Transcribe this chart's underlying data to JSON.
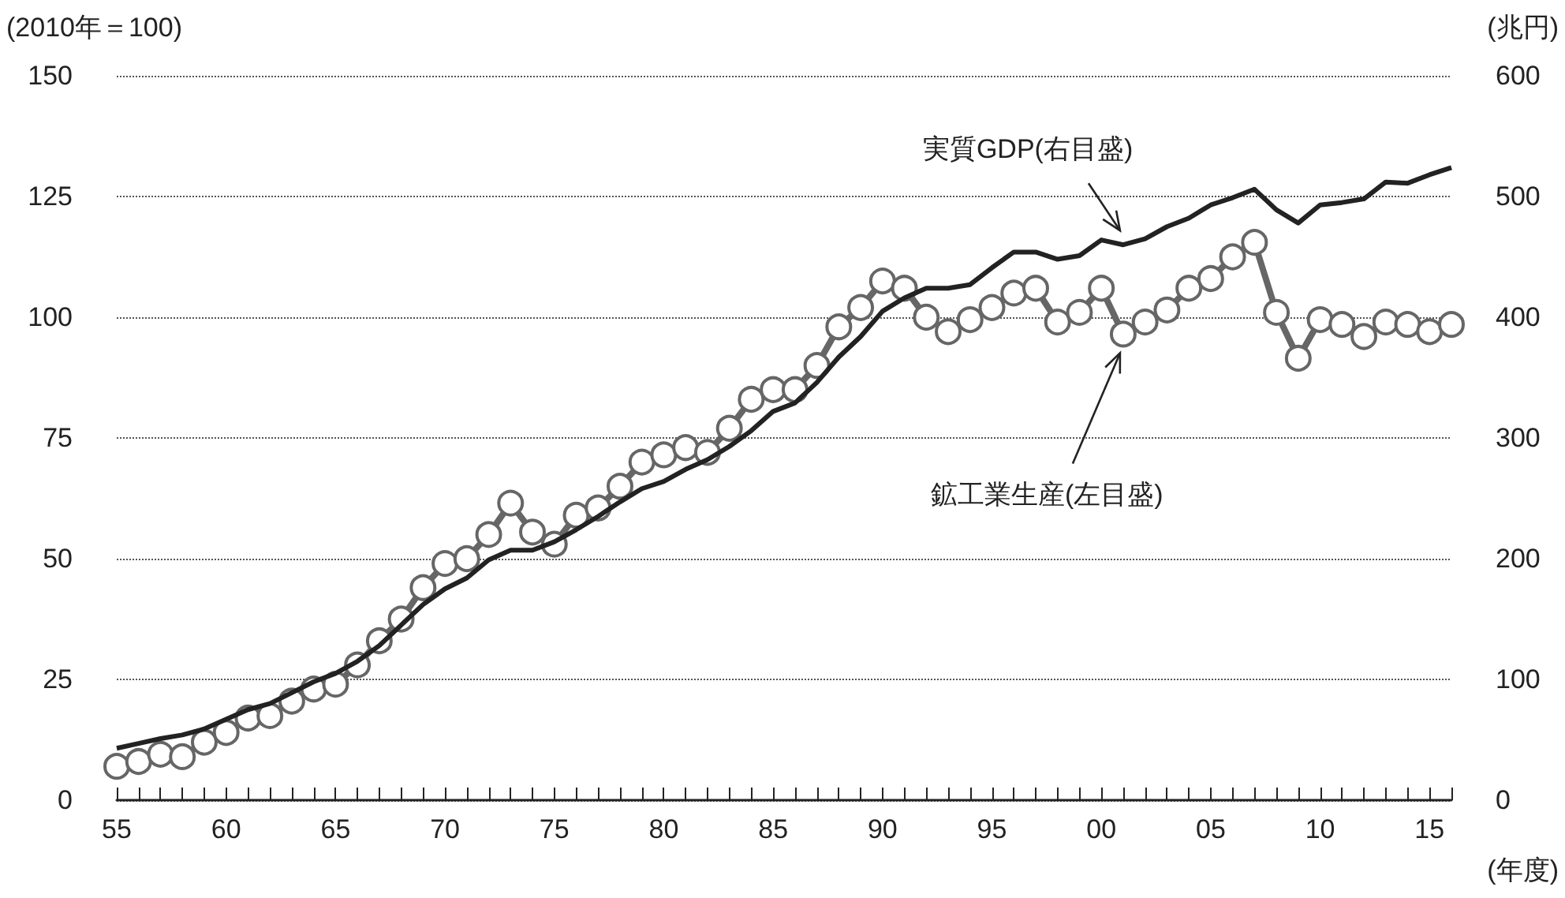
{
  "chart_data": {
    "type": "line",
    "ylabel": "(2010年＝100)",
    "y2label": "(兆円)",
    "xlabel": "(年度)",
    "x": [
      1955,
      1956,
      1957,
      1958,
      1959,
      1960,
      1961,
      1962,
      1963,
      1964,
      1965,
      1966,
      1967,
      1968,
      1969,
      1970,
      1971,
      1972,
      1973,
      1974,
      1975,
      1976,
      1977,
      1978,
      1979,
      1980,
      1981,
      1982,
      1983,
      1984,
      1985,
      1986,
      1987,
      1988,
      1989,
      1990,
      1991,
      1992,
      1993,
      1994,
      1995,
      1996,
      1997,
      1998,
      1999,
      2000,
      2001,
      2002,
      2003,
      2004,
      2005,
      2006,
      2007,
      2008,
      2009,
      2010,
      2011,
      2012,
      2013,
      2014,
      2015,
      2016
    ],
    "series": [
      {
        "name": "鉱工業生産(左目盛)",
        "color": "#666666",
        "marker": "circle",
        "values": [
          7,
          8,
          9.5,
          9,
          12,
          14,
          17,
          17.5,
          20.5,
          23,
          24,
          28,
          33,
          37.5,
          44,
          49,
          50,
          55,
          61.5,
          55.5,
          53,
          59,
          60.5,
          65,
          70,
          71.5,
          73,
          72,
          77,
          83,
          85,
          85,
          90,
          98,
          102,
          107.5,
          106,
          100,
          97,
          99.5,
          102,
          105,
          106,
          99,
          101,
          106,
          96.5,
          99,
          101.5,
          106,
          108,
          112.5,
          115.5,
          101,
          91.5,
          99.5,
          98.5,
          96,
          99,
          98.5,
          97,
          98.5
        ]
      },
      {
        "name": "実質GDP(右目盛)",
        "color": "#222222",
        "axis": "y2",
        "marker": "none",
        "values": [
          43,
          47,
          51,
          54,
          59,
          67,
          75,
          80,
          89,
          98,
          105,
          115,
          128,
          145,
          162,
          175,
          184,
          199,
          207,
          207,
          214,
          224,
          235,
          247,
          258,
          264,
          274,
          282,
          293,
          306,
          322,
          329,
          346,
          367,
          384,
          405,
          416,
          424,
          424,
          427,
          441,
          454,
          454,
          448,
          451,
          464,
          460,
          465,
          475,
          482,
          493,
          499,
          506,
          489,
          478,
          493,
          495,
          498,
          512,
          511,
          518,
          524
        ]
      }
    ],
    "xlim": [
      1955,
      2016
    ],
    "xticks": [
      {
        "value": 1955,
        "label": "55"
      },
      {
        "value": 1956,
        "label": null
      },
      {
        "value": 1957,
        "label": null
      },
      {
        "value": 1958,
        "label": null
      },
      {
        "value": 1959,
        "label": null
      },
      {
        "value": 1960,
        "label": "60"
      },
      {
        "value": 1961,
        "label": null
      },
      {
        "value": 1962,
        "label": null
      },
      {
        "value": 1963,
        "label": null
      },
      {
        "value": 1964,
        "label": null
      },
      {
        "value": 1965,
        "label": "65"
      },
      {
        "value": 1966,
        "label": null
      },
      {
        "value": 1967,
        "label": null
      },
      {
        "value": 1968,
        "label": null
      },
      {
        "value": 1969,
        "label": null
      },
      {
        "value": 1970,
        "label": "70"
      },
      {
        "value": 1971,
        "label": null
      },
      {
        "value": 1972,
        "label": null
      },
      {
        "value": 1973,
        "label": null
      },
      {
        "value": 1974,
        "label": null
      },
      {
        "value": 1975,
        "label": "75"
      },
      {
        "value": 1976,
        "label": null
      },
      {
        "value": 1977,
        "label": null
      },
      {
        "value": 1978,
        "label": null
      },
      {
        "value": 1979,
        "label": null
      },
      {
        "value": 1980,
        "label": "80"
      },
      {
        "value": 1981,
        "label": null
      },
      {
        "value": 1982,
        "label": null
      },
      {
        "value": 1983,
        "label": null
      },
      {
        "value": 1984,
        "label": null
      },
      {
        "value": 1985,
        "label": "85"
      },
      {
        "value": 1986,
        "label": null
      },
      {
        "value": 1987,
        "label": null
      },
      {
        "value": 1988,
        "label": null
      },
      {
        "value": 1989,
        "label": null
      },
      {
        "value": 1990,
        "label": "90"
      },
      {
        "value": 1991,
        "label": null
      },
      {
        "value": 1992,
        "label": null
      },
      {
        "value": 1993,
        "label": null
      },
      {
        "value": 1994,
        "label": null
      },
      {
        "value": 1995,
        "label": "95"
      },
      {
        "value": 1996,
        "label": null
      },
      {
        "value": 1997,
        "label": null
      },
      {
        "value": 1998,
        "label": null
      },
      {
        "value": 1999,
        "label": null
      },
      {
        "value": 2000,
        "label": "00"
      },
      {
        "value": 2001,
        "label": null
      },
      {
        "value": 2002,
        "label": null
      },
      {
        "value": 2003,
        "label": null
      },
      {
        "value": 2004,
        "label": null
      },
      {
        "value": 2005,
        "label": "05"
      },
      {
        "value": 2006,
        "label": null
      },
      {
        "value": 2007,
        "label": null
      },
      {
        "value": 2008,
        "label": null
      },
      {
        "value": 2009,
        "label": null
      },
      {
        "value": 2010,
        "label": "10"
      },
      {
        "value": 2011,
        "label": null
      },
      {
        "value": 2012,
        "label": null
      },
      {
        "value": 2013,
        "label": null
      },
      {
        "value": 2014,
        "label": null
      },
      {
        "value": 2015,
        "label": "15"
      },
      {
        "value": 2016,
        "label": null
      }
    ],
    "ylim": [
      0,
      150
    ],
    "yticks": [
      0,
      25,
      50,
      75,
      100,
      125,
      150
    ],
    "y2lim": [
      0,
      600
    ],
    "y2ticks": [
      0,
      100,
      200,
      300,
      400,
      500,
      600
    ],
    "grid": "y",
    "legend": false
  }
}
